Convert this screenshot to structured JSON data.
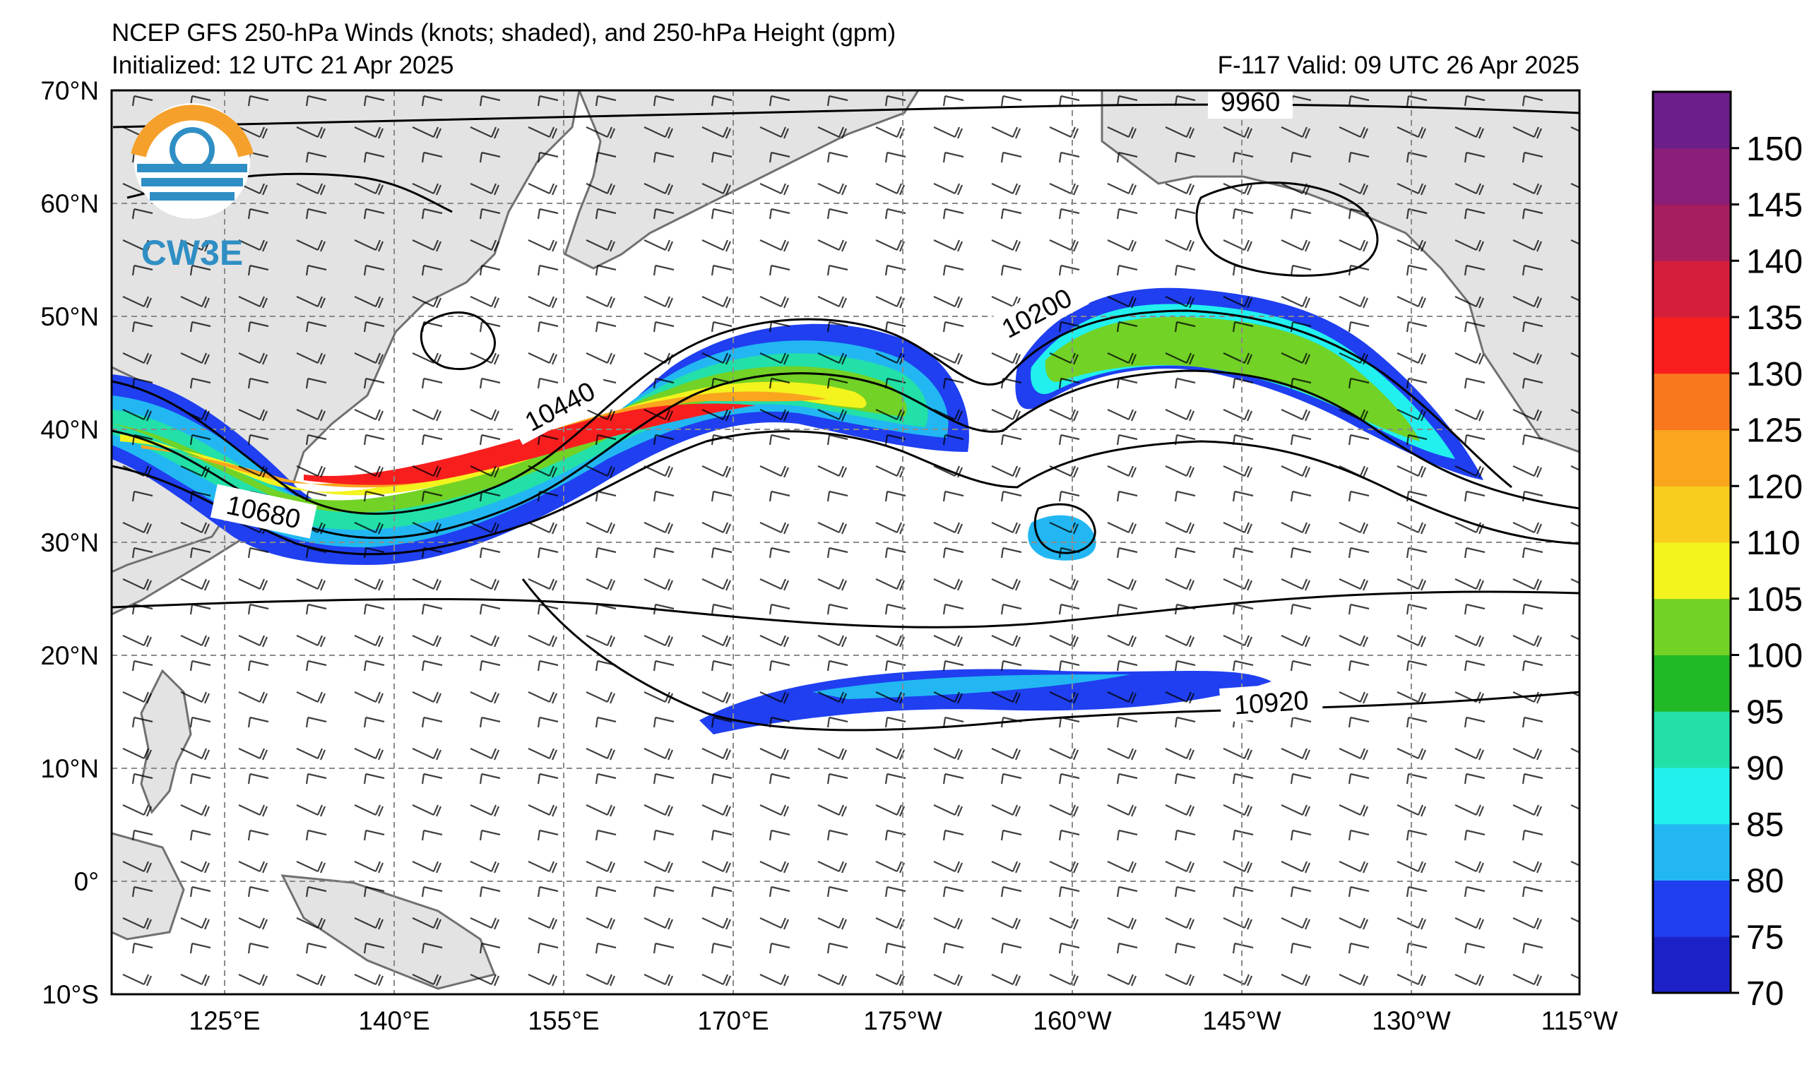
{
  "header": {
    "title": "NCEP GFS 250-hPa Winds (knots; shaded), and 250-hPa Height (gpm)",
    "initialized": "Initialized: 12 UTC 21 Apr 2025",
    "valid": "F-117  Valid: 09 UTC 26 Apr 2025"
  },
  "logo": {
    "text": "CW3E"
  },
  "axes": {
    "lat_labels": [
      "70°N",
      "60°N",
      "50°N",
      "40°N",
      "30°N",
      "20°N",
      "10°N",
      "0°",
      "10°S"
    ],
    "lon_labels": [
      "125°E",
      "140°E",
      "155°E",
      "170°E",
      "175°W",
      "160°W",
      "145°W",
      "130°W",
      "115°W"
    ]
  },
  "contour_labels": [
    "9960",
    "10200",
    "10440",
    "10680",
    "10920"
  ],
  "colorbar": {
    "ticks": [
      "70",
      "75",
      "80",
      "85",
      "90",
      "95",
      "100",
      "105",
      "110",
      "120",
      "125",
      "130",
      "135",
      "140",
      "145",
      "150"
    ],
    "colors": [
      "#1c22c8",
      "#1f3ff0",
      "#22b7f2",
      "#22f0ee",
      "#22e0a8",
      "#22b926",
      "#72d226",
      "#f3f31e",
      "#f9cd1e",
      "#f9a51e",
      "#f9781e",
      "#f91e1e",
      "#d41e3a",
      "#a61e5e",
      "#8a1e78",
      "#6c1e8a"
    ]
  },
  "chart_data": {
    "type": "map",
    "title": "NCEP GFS 250-hPa Winds (knots; shaded), and 250-hPa Height (gpm)",
    "lat_range": [
      -10,
      70
    ],
    "lon_range": [
      110,
      245
    ],
    "grid": true,
    "colorbar_range": [
      70,
      155
    ],
    "height_contours_gpm": [
      9960,
      10200,
      10440,
      10680,
      10920
    ]
  }
}
